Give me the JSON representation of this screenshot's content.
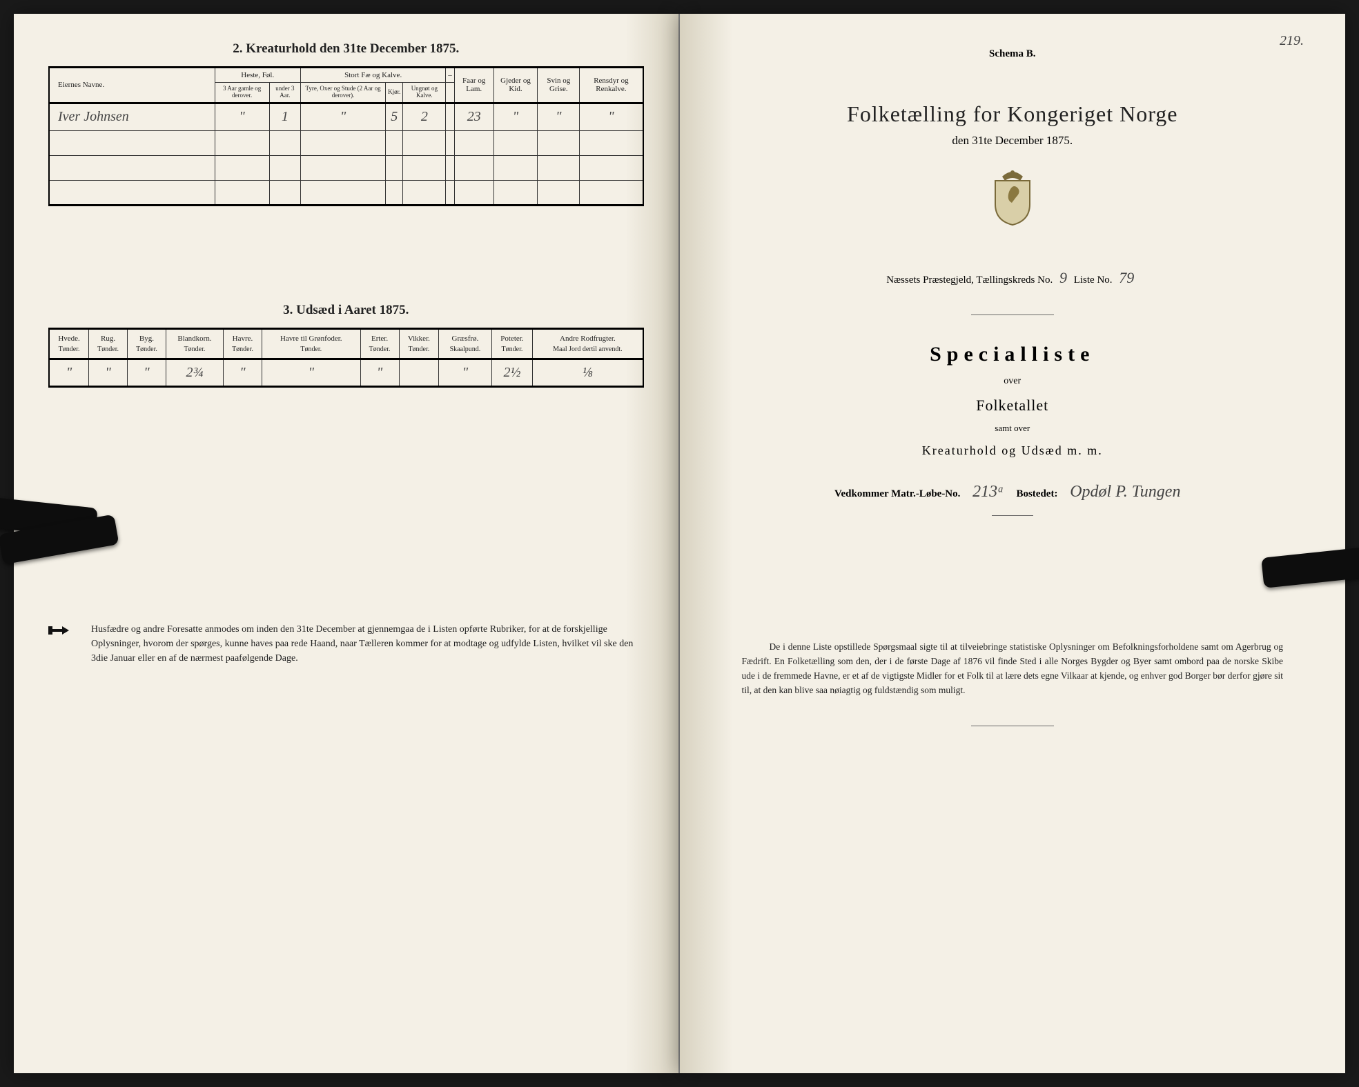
{
  "left": {
    "section2_title": "2. Kreaturhold den 31te December 1875.",
    "kreatur": {
      "headers": {
        "owner": "Eiernes Navne.",
        "horse_group": "Heste, Føl.",
        "horse_a": "3 Aar gamle og derover.",
        "horse_b": "under 3 Aar.",
        "cattle_group": "Stort Fæ og Kalve.",
        "cattle_a": "Tyre, Oxer og Stude (2 Aar og derover).",
        "cattle_b": "Kjør.",
        "cattle_c": "Ungnøt og Kalve.",
        "empty_group": "–",
        "sheep": "Faar og Lam.",
        "goat": "Gjeder og Kid.",
        "pig": "Svin og Grise.",
        "reindeer": "Rensdyr og Renkalve."
      },
      "row": {
        "owner": "Iver Johnsen",
        "horse_a": "\"",
        "horse_b": "1",
        "cattle_a": "\"",
        "cattle_b": "5",
        "cattle_c": "2",
        "sheep": "23",
        "goat": "\"",
        "pig": "\"",
        "reindeer": "\""
      }
    },
    "section3_title": "3. Udsæd i Aaret 1875.",
    "udsad": {
      "cols": [
        {
          "label": "Hvede.",
          "unit": "Tønder."
        },
        {
          "label": "Rug.",
          "unit": "Tønder."
        },
        {
          "label": "Byg.",
          "unit": "Tønder."
        },
        {
          "label": "Blandkorn.",
          "unit": "Tønder."
        },
        {
          "label": "Havre.",
          "unit": "Tønder."
        },
        {
          "label": "Havre til Grønfoder.",
          "unit": "Tønder."
        },
        {
          "label": "Erter.",
          "unit": "Tønder."
        },
        {
          "label": "Vikker.",
          "unit": "Tønder."
        },
        {
          "label": "Græsfrø.",
          "unit": "Skaalpund."
        },
        {
          "label": "Poteter.",
          "unit": "Tønder."
        },
        {
          "label": "Andre Rodfrugter.",
          "unit": "Maal Jord dertil anvendt."
        }
      ],
      "row": [
        "\"",
        "\"",
        "\"",
        "2¾",
        "\"",
        "\"",
        "\"",
        "",
        "\"",
        "2½",
        "⅛"
      ]
    },
    "footnote": "Husfædre og andre Foresatte anmodes om inden den 31te December at gjennemgaa de i Listen opførte Rubriker, for at de forskjellige Oplysninger, hvorom der spørges, kunne haves paa rede Haand, naar Tælleren kommer for at modtage og udfylde Listen, hvilket vil ske den 3die Januar eller en af de nærmest paafølgende Dage."
  },
  "right": {
    "page_num": "219.",
    "schema": "Schema B.",
    "title": "Folketælling for Kongeriget Norge",
    "subtitle": "den 31te December 1875.",
    "fill_pre": "Næssets Præstegjeld, Tællingskreds No.",
    "fill_kreds": "9",
    "fill_mid": "Liste No.",
    "fill_liste": "79",
    "spec_title": "Specialliste",
    "spec_over": "over",
    "spec_folketallet": "Folketallet",
    "spec_samt": "samt over",
    "spec_kreatur": "Kreaturhold og Udsæd m. m.",
    "matr_pre": "Vedkommer Matr.-Løbe-No.",
    "matr_no": "213ᵃ",
    "matr_mid": "Bostedet:",
    "matr_place": "Opdøl P. Tungen",
    "footnote": "De i denne Liste opstillede Spørgsmaal sigte til at tilveiebringe statistiske Oplysninger om Befolkningsforholdene samt om Agerbrug og Fædrift. En Folketælling som den, der i de første Dage af 1876 vil finde Sted i alle Norges Bygder og Byer samt ombord paa de norske Skibe ude i de fremmede Havne, er et af de vigtigste Midler for et Folk til at lære dets egne Vilkaar at kjende, og enhver god Borger bør derfor gjøre sit til, at den kan blive saa nøiagtig og fuldstændig som muligt."
  }
}
